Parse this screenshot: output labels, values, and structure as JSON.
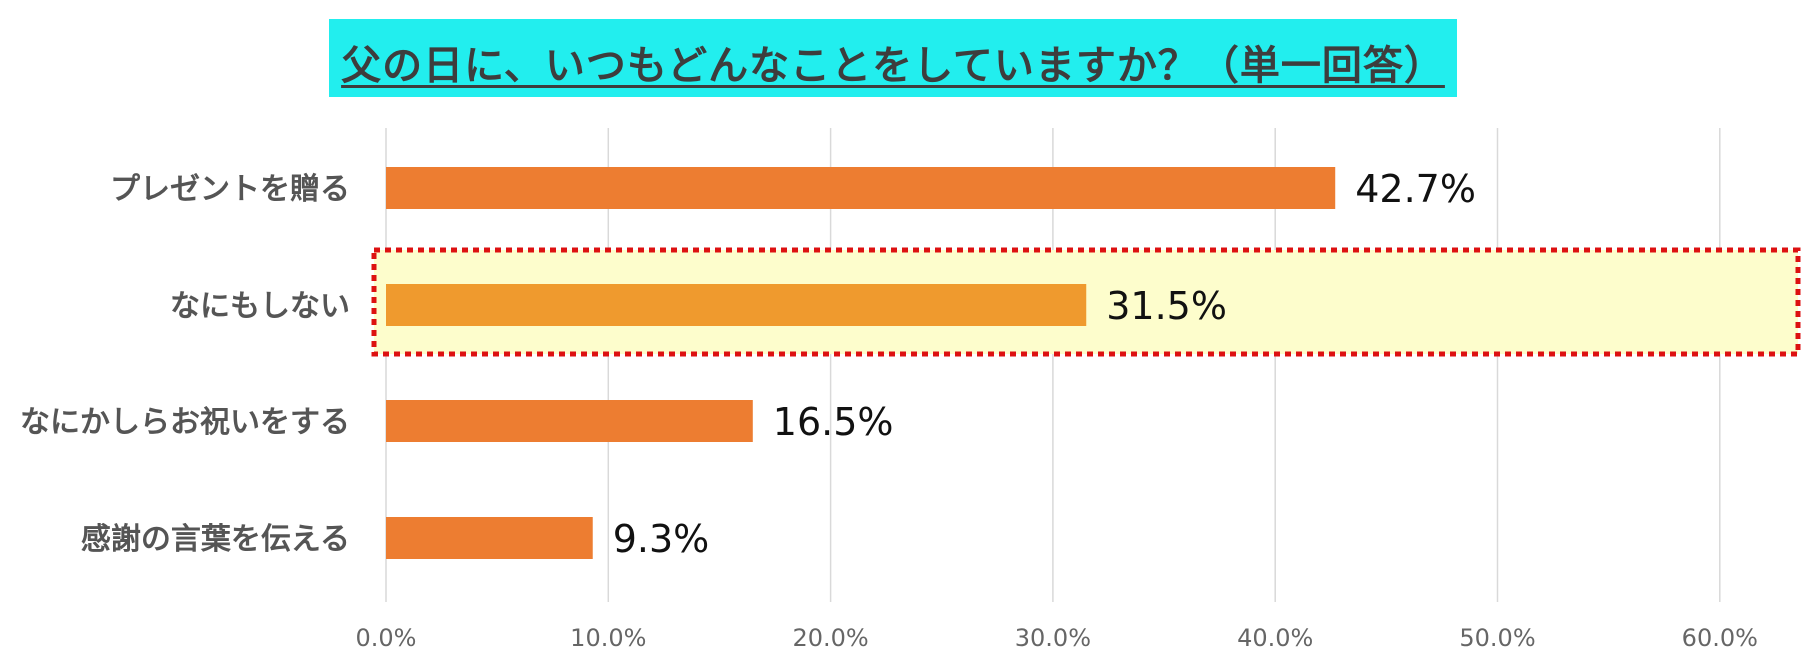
{
  "chart_data": {
    "type": "bar",
    "orientation": "horizontal",
    "title": "父の日に、いつもどんなことをしていますか？（単一回答）",
    "categories": [
      "プレゼントを贈る",
      "なにもしない",
      "なにかしらお祝いをする",
      "感謝の言葉を伝える"
    ],
    "values": [
      42.7,
      31.5,
      16.5,
      9.3
    ],
    "value_labels": [
      "42.7%",
      "31.5%",
      "16.5%",
      "9.3%"
    ],
    "xlim": [
      0,
      60
    ],
    "xticks": [
      "0.0%",
      "10.0%",
      "20.0%",
      "30.0%",
      "40.0%",
      "50.0%",
      "60.0%"
    ],
    "highlighted_category": "なにもしない",
    "grid": "vertical",
    "legend": "none",
    "colors": {
      "bar": "#ed7d31",
      "highlight_bar": "#ef9a2e",
      "highlight_fill": "#fdfdcc",
      "highlight_border": "#dd1111",
      "title_background": "#22eeee",
      "gridline": "#d9d9d9"
    }
  }
}
